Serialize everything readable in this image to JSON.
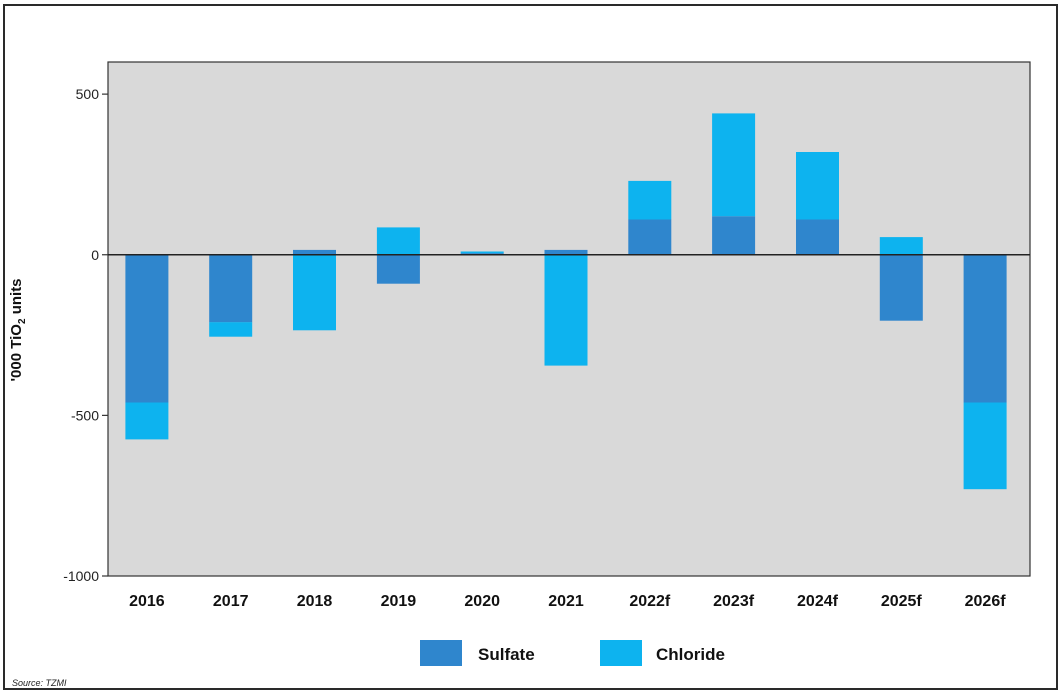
{
  "chart_data": {
    "type": "bar",
    "stacked": true,
    "categories": [
      "2016",
      "2017",
      "2018",
      "2019",
      "2020",
      "2021",
      "2022f",
      "2023f",
      "2024f",
      "2025f",
      "2026f"
    ],
    "series": [
      {
        "name": "Sulfate",
        "color": "#2f86cd",
        "values": [
          -460,
          -210,
          15,
          -90,
          5,
          15,
          110,
          120,
          110,
          -205,
          -460
        ]
      },
      {
        "name": "Chloride",
        "color": "#0db3ef",
        "values": [
          -115,
          -45,
          -235,
          85,
          5,
          -345,
          120,
          320,
          210,
          55,
          -270
        ]
      }
    ],
    "ylabel": "'000 TiO₂ units",
    "ylim": [
      -1000,
      600
    ],
    "yticks": [
      500,
      0,
      -500,
      -1000
    ],
    "grid": false,
    "legend_position": "bottom",
    "source": "Source: TZMI",
    "plot_background": "#d9d9d9"
  },
  "axis_title": {
    "prefix": "'000 TiO",
    "subscript": "2",
    "suffix": " units"
  }
}
